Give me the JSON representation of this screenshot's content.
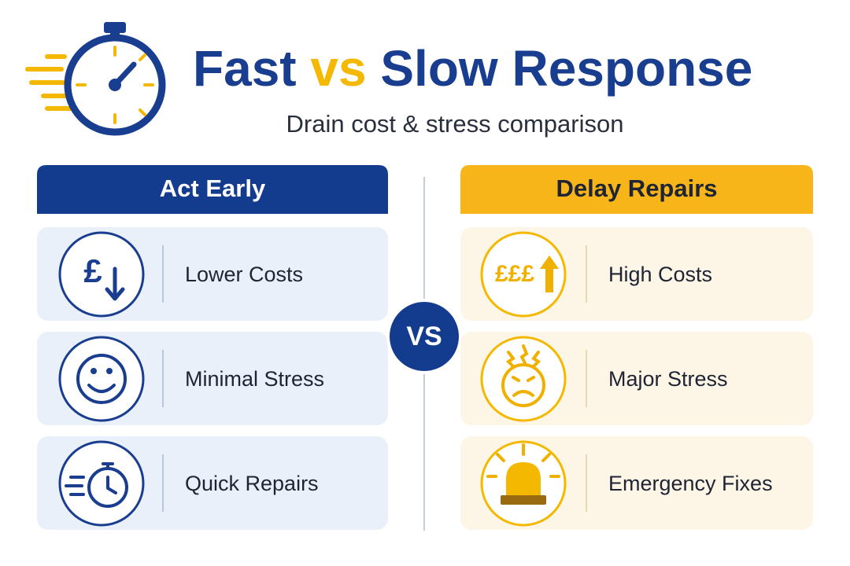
{
  "header": {
    "title": {
      "part1": "Fast",
      "part2": "vs",
      "part3": "Slow Response"
    },
    "subtitle": "Drain cost & stress comparison"
  },
  "left": {
    "heading": "Act Early",
    "icon_text": "£",
    "items": [
      "Lower Costs",
      "Minimal Stress",
      "Quick Repairs"
    ]
  },
  "vs": "VS",
  "right": {
    "heading": "Delay Repairs",
    "icon_text": "£££",
    "items": [
      "High Costs",
      "Major Stress",
      "Emergency Fixes"
    ]
  }
}
